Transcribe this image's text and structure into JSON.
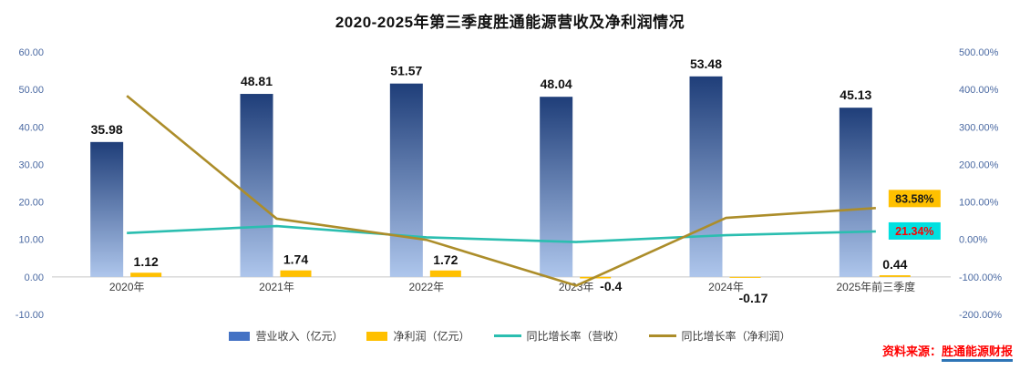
{
  "chart_data": {
    "type": "combo",
    "title": "2020-2025年第三季度胜通能源营收及净利润情况",
    "categories": [
      "2020年",
      "2021年",
      "2022年",
      "2023年",
      "2024年",
      "2025年前三季度"
    ],
    "series": [
      {
        "name": "营业收入（亿元）",
        "type": "bar",
        "axis": "left",
        "values": [
          35.98,
          48.81,
          51.57,
          48.04,
          53.48,
          45.13
        ],
        "labels": [
          "35.98",
          "48.81",
          "51.57",
          "48.04",
          "53.48",
          "45.13"
        ],
        "color_top": "#1F3E79",
        "color_bottom": "#AEC6EC"
      },
      {
        "name": "净利润（亿元）",
        "type": "bar",
        "axis": "left",
        "values": [
          1.12,
          1.74,
          1.72,
          -0.4,
          -0.17,
          0.44
        ],
        "labels": [
          "1.12",
          "1.74",
          "1.72",
          "-0.4",
          "-0.17",
          "0.44"
        ],
        "color": "#FFC000"
      },
      {
        "name": "同比增长率（营收）",
        "type": "line",
        "axis": "right",
        "values": [
          17,
          35.66,
          5.65,
          -6.85,
          11.32,
          21.34
        ],
        "color": "#2BBEB0",
        "end_label": {
          "text": "21.34%",
          "bg": "#00E0E0",
          "fg": "#FF0000",
          "pos": "middle"
        }
      },
      {
        "name": "同比增长率（净利润）",
        "type": "line",
        "axis": "right",
        "values": [
          383,
          55.36,
          -1.15,
          -123.26,
          57.5,
          83.58
        ],
        "color": "#AC8D2A",
        "end_label": {
          "text": "83.58%",
          "bg": "#FFC000",
          "fg": "#1A1A1A",
          "pos": "above"
        }
      }
    ],
    "left_axis": {
      "min": -10,
      "max": 60,
      "ticks": [
        "60.00",
        "50.00",
        "40.00",
        "30.00",
        "20.00",
        "10.00",
        "0.00",
        "-10.00"
      ]
    },
    "right_axis": {
      "min": -200,
      "max": 500,
      "ticks": [
        "500.00%",
        "400.00%",
        "300.00%",
        "200.00%",
        "100.00%",
        "0.00%",
        "-100.00%",
        "-200.00%"
      ]
    },
    "legend": [
      {
        "label": "营业收入（亿元）",
        "swatch": "bar",
        "color": "#4472C4"
      },
      {
        "label": "净利润（亿元）",
        "swatch": "bar",
        "color": "#FFC000"
      },
      {
        "label": "同比增长率（营收）",
        "swatch": "line",
        "color": "#2BBEB0"
      },
      {
        "label": "同比增长率（净利润）",
        "swatch": "line",
        "color": "#AC8D2A"
      }
    ]
  },
  "source": {
    "prefix": "资料来源：",
    "name": "胜通能源财报"
  }
}
